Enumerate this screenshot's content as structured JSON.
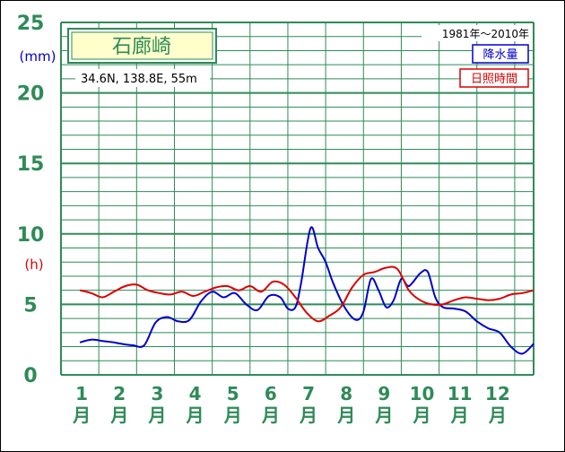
{
  "chart_data": {
    "type": "line",
    "station": "石廊崎",
    "location": "34.6N,  138.8E,  55m",
    "period": "1981年〜2010年",
    "y_unit_precip": "(mm)",
    "y_unit_sun": "(h)",
    "ylim": [
      0,
      25
    ],
    "yticks": [
      "0",
      "5",
      "10",
      "15",
      "20",
      "25"
    ],
    "month_numbers": [
      "1",
      "2",
      "3",
      "4",
      "5",
      "6",
      "7",
      "8",
      "9",
      "10",
      "11",
      "12"
    ],
    "month_suffix": "月",
    "grid": true,
    "legend_position": "top-right",
    "colors": {
      "grid": "#2e8b57",
      "axis_text": "#2e8b57",
      "precip": "#0000cc",
      "sun": "#dd0000",
      "station_box_bg": "#ffffcc"
    },
    "series": [
      {
        "name": "降水量",
        "x": [
          0.5,
          0.8,
          1.1,
          1.4,
          1.6,
          1.9,
          2.2,
          2.5,
          2.8,
          3.1,
          3.4,
          3.7,
          4.0,
          4.3,
          4.6,
          4.9,
          5.2,
          5.5,
          5.8,
          6.0,
          6.2,
          6.35,
          6.6,
          6.8,
          7.0,
          7.2,
          7.5,
          7.8,
          8.0,
          8.2,
          8.4,
          8.6,
          8.8,
          9.0,
          9.2,
          9.5,
          9.7,
          9.9,
          10.1,
          10.4,
          10.7,
          11.0,
          11.3,
          11.6,
          11.9,
          12.2,
          12.5
        ],
        "values": [
          2.3,
          2.5,
          2.4,
          2.3,
          2.2,
          2.1,
          2.1,
          3.7,
          4.1,
          3.8,
          3.9,
          5.2,
          5.9,
          5.5,
          5.8,
          5.0,
          4.6,
          5.6,
          5.5,
          4.7,
          4.8,
          6.5,
          10.4,
          9.0,
          8.0,
          6.5,
          4.8,
          3.9,
          4.5,
          6.8,
          6.0,
          4.8,
          5.3,
          6.8,
          6.3,
          7.2,
          7.3,
          5.5,
          4.8,
          4.7,
          4.5,
          3.8,
          3.3,
          3.0,
          2.0,
          1.5,
          2.2
        ]
      },
      {
        "name": "日照時間",
        "x": [
          0.5,
          0.8,
          1.1,
          1.4,
          1.7,
          2.0,
          2.3,
          2.6,
          2.9,
          3.2,
          3.5,
          3.8,
          4.1,
          4.4,
          4.7,
          5.0,
          5.3,
          5.6,
          5.9,
          6.2,
          6.5,
          6.8,
          7.1,
          7.4,
          7.7,
          8.0,
          8.3,
          8.6,
          8.9,
          9.2,
          9.5,
          9.8,
          10.1,
          10.4,
          10.7,
          11.0,
          11.3,
          11.6,
          11.9,
          12.2,
          12.5
        ],
        "values": [
          6.0,
          5.8,
          5.5,
          5.9,
          6.3,
          6.4,
          6.0,
          5.8,
          5.7,
          5.9,
          5.6,
          5.9,
          6.2,
          6.3,
          6.0,
          6.3,
          5.9,
          6.6,
          6.4,
          5.5,
          4.4,
          3.8,
          4.2,
          4.8,
          6.2,
          7.1,
          7.3,
          7.6,
          7.5,
          6.0,
          5.3,
          5.0,
          5.0,
          5.3,
          5.5,
          5.4,
          5.3,
          5.4,
          5.7,
          5.8,
          6.0
        ]
      }
    ]
  }
}
